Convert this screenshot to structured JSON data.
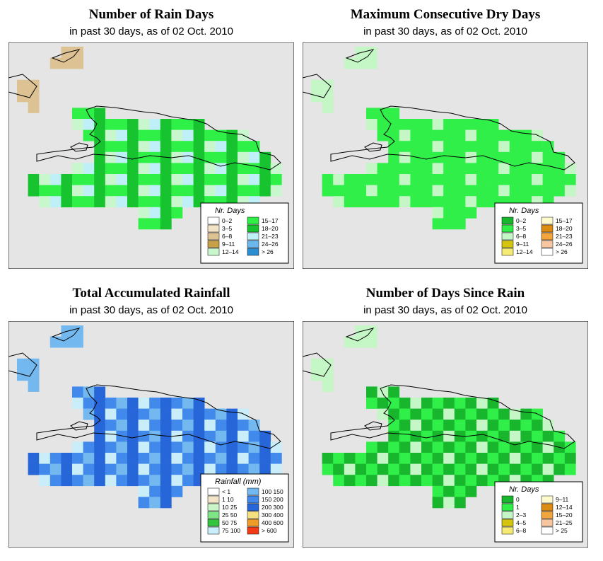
{
  "subtitle": "in past 30 days, as of  02 Oct. 2010",
  "panels": [
    {
      "title": "Number of Rain Days",
      "legend_title": "Nr. Days",
      "legend": [
        {
          "label": "0–2",
          "color": "#ffffff"
        },
        {
          "label": "3–5",
          "color": "#f3e4c8"
        },
        {
          "label": "6–8",
          "color": "#ddc293"
        },
        {
          "label": "9–11",
          "color": "#c8a045"
        },
        {
          "label": "12–14",
          "color": "#c9f7cd"
        },
        {
          "label": "15–17",
          "color": "#2ef046"
        },
        {
          "label": "18–20",
          "color": "#17c32f"
        },
        {
          "label": "21–23",
          "color": "#bff0f7"
        },
        {
          "label": "24–26",
          "color": "#6ab8ee"
        },
        {
          "label": "> 26",
          "color": "#2a8fd0"
        }
      ]
    },
    {
      "title": "Maximum Consecutive Dry Days",
      "legend_title": "Nr. Days",
      "legend": [
        {
          "label": "0–2",
          "color": "#17b62c"
        },
        {
          "label": "3–5",
          "color": "#31ef49"
        },
        {
          "label": "6–8",
          "color": "#c4f6c6"
        },
        {
          "label": "9–11",
          "color": "#d4c40e"
        },
        {
          "label": "12–14",
          "color": "#f5ea73"
        },
        {
          "label": "15–17",
          "color": "#fdfacc"
        },
        {
          "label": "18–20",
          "color": "#dd8c12"
        },
        {
          "label": "21–23",
          "color": "#f2a53c"
        },
        {
          "label": "24–26",
          "color": "#f7c6a0"
        },
        {
          "label": "> 26",
          "color": "#ffffff"
        }
      ]
    },
    {
      "title": "Total Accumulated Rainfall",
      "legend_title": "Rainfall (mm)",
      "legend": [
        {
          "label": "< 1",
          "color": "#ffffff"
        },
        {
          "label": "1    10",
          "color": "#f3e4c8"
        },
        {
          "label": "10   25",
          "color": "#caf5c8"
        },
        {
          "label": "25   50",
          "color": "#7fe685"
        },
        {
          "label": "50   75",
          "color": "#32c53d"
        },
        {
          "label": "75  100",
          "color": "#c9eef9"
        },
        {
          "label": "100  150",
          "color": "#73b8ef"
        },
        {
          "label": "150  200",
          "color": "#4189ea"
        },
        {
          "label": "200  300",
          "color": "#2766d8"
        },
        {
          "label": "300  400",
          "color": "#f6df7e"
        },
        {
          "label": "400  600",
          "color": "#f09a28"
        },
        {
          "label": "> 600",
          "color": "#f23a14"
        }
      ]
    },
    {
      "title": "Number of Days Since Rain",
      "legend_title": "Nr. Days",
      "legend": [
        {
          "label": "0",
          "color": "#17b62c"
        },
        {
          "label": "1",
          "color": "#31ef49"
        },
        {
          "label": "2–3",
          "color": "#c4f6c6"
        },
        {
          "label": "4–5",
          "color": "#d4c40e"
        },
        {
          "label": "6–8",
          "color": "#f5ea73"
        },
        {
          "label": "9–11",
          "color": "#fdfacc"
        },
        {
          "label": "12–14",
          "color": "#dd8c12"
        },
        {
          "label": "15–20",
          "color": "#f2a53c"
        },
        {
          "label": "21–25",
          "color": "#f7c6a0"
        },
        {
          "label": "> 25",
          "color": "#ffffff"
        }
      ]
    }
  ],
  "chart_data": [
    {
      "type": "heatmap",
      "title": "Number of Rain Days",
      "subtitle": "in past 30 days, as of  02 Oct. 2010",
      "legend_title": "Nr. Days",
      "categories": [
        "0–2",
        "3–5",
        "6–8",
        "9–11",
        "12–14",
        "15–17",
        "18–20",
        "21–23",
        "24–26",
        "> 26"
      ],
      "legend_placement": "bottom-right",
      "grid": false
    },
    {
      "type": "heatmap",
      "title": "Maximum Consecutive Dry Days",
      "subtitle": "in past 30 days, as of  02 Oct. 2010",
      "legend_title": "Nr. Days",
      "categories": [
        "0–2",
        "3–5",
        "6–8",
        "9–11",
        "12–14",
        "15–17",
        "18–20",
        "21–23",
        "24–26",
        "> 26"
      ],
      "legend_placement": "bottom-right",
      "grid": false
    },
    {
      "type": "heatmap",
      "title": "Total Accumulated Rainfall",
      "subtitle": "in past 30 days, as of  02 Oct. 2010",
      "legend_title": "Rainfall (mm)",
      "categories": [
        "< 1",
        "1 10",
        "10 25",
        "25 50",
        "50 75",
        "75 100",
        "100 150",
        "150 200",
        "200 300",
        "300 400",
        "400 600",
        "> 600"
      ],
      "legend_placement": "bottom-right",
      "grid": false
    },
    {
      "type": "heatmap",
      "title": "Number of Days Since Rain",
      "subtitle": "in past 30 days, as of  02 Oct. 2010",
      "legend_title": "Nr. Days",
      "categories": [
        "0",
        "1",
        "2–3",
        "4–5",
        "6–8",
        "9–11",
        "12–14",
        "15–20",
        "21–25",
        "> 25"
      ],
      "legend_placement": "bottom-right",
      "grid": false
    }
  ]
}
